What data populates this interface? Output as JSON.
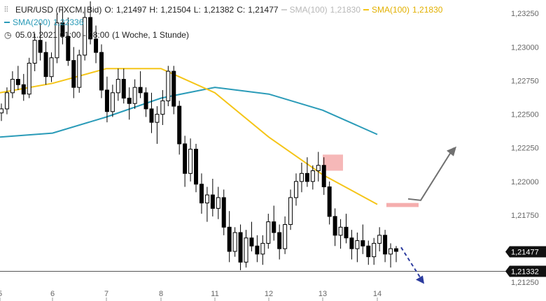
{
  "legend": {
    "symbol": "EUR/USD (FXCM, Bid)",
    "o_label": "O:",
    "o_value": "1,21497",
    "h_label": "H:",
    "h_value": "1,21504",
    "l_label": "L:",
    "l_value": "1,21382",
    "c_label": "C:",
    "c_value": "1,21477",
    "sma100_label": "SMA(100)",
    "sma100_value": "1,21830",
    "sma100_active_label": "SMA(100)",
    "sma100_active_value": "1,21830",
    "sma200_label": "SMA(200)",
    "sma200_value": "1,22336",
    "period": "05.01.2021 01:00 - 08:00",
    "timeframe": "(1 Woche, 1 Stunde)"
  },
  "colors": {
    "candle": "#000000",
    "sma100": "#f5c518",
    "sma200": "#2a9bb8",
    "sma100_dim": "#c4c4c4",
    "highlight": "#f29a9a",
    "arrow_up": "#707070",
    "arrow_down": "#2b3b9e",
    "level_line": "#555555",
    "axis_text": "#666666"
  },
  "chart_data": {
    "type": "candlestick",
    "instrument": "EUR/USD",
    "ylim": [
      1.2122,
      1.2335
    ],
    "y_ticks": [
      "1,23250",
      "1,23000",
      "1,22750",
      "1,22500",
      "1,22250",
      "1,22000",
      "1,21750",
      "1,21250"
    ],
    "y_tick_values": [
      1.2325,
      1.23,
      1.2275,
      1.225,
      1.2225,
      1.22,
      1.2175,
      1.2125
    ],
    "x_ticks": [
      "5",
      "6",
      "7",
      "8",
      "11",
      "12",
      "13",
      "14"
    ],
    "price_label_current": "1,21477",
    "price_label_level": "1,21332",
    "current_price": 1.21477,
    "level_price": 1.21332,
    "sma100_last": 1.2183,
    "sma200_last": 1.22336,
    "sma200_path": [
      {
        "x": "5",
        "y": 1.2233
      },
      {
        "x": "6",
        "y": 1.2236
      },
      {
        "x": "7",
        "y": 1.2248
      },
      {
        "x": "8",
        "y": 1.2262
      },
      {
        "x": "11",
        "y": 1.227
      },
      {
        "x": "12",
        "y": 1.2265
      },
      {
        "x": "13",
        "y": 1.2253
      },
      {
        "x": "14",
        "y": 1.2235
      }
    ],
    "sma100_path": [
      {
        "x": "5",
        "y": 1.2266
      },
      {
        "x": "6",
        "y": 1.2273
      },
      {
        "x": "7",
        "y": 1.2284
      },
      {
        "x": "8",
        "y": 1.2284
      },
      {
        "x": "11",
        "y": 1.2266
      },
      {
        "x": "12",
        "y": 1.2233
      },
      {
        "x": "13",
        "y": 1.2205
      },
      {
        "x": "14",
        "y": 1.2183
      }
    ],
    "candles": [
      {
        "o": 1.2251,
        "h": 1.2258,
        "l": 1.2245,
        "c": 1.2254
      },
      {
        "o": 1.2254,
        "h": 1.227,
        "l": 1.225,
        "c": 1.2266
      },
      {
        "o": 1.2266,
        "h": 1.2282,
        "l": 1.2262,
        "c": 1.2276
      },
      {
        "o": 1.2276,
        "h": 1.2286,
        "l": 1.2268,
        "c": 1.2272
      },
      {
        "o": 1.2272,
        "h": 1.228,
        "l": 1.226,
        "c": 1.2265
      },
      {
        "o": 1.2265,
        "h": 1.2292,
        "l": 1.2262,
        "c": 1.2288
      },
      {
        "o": 1.2288,
        "h": 1.231,
        "l": 1.2282,
        "c": 1.2305
      },
      {
        "o": 1.2305,
        "h": 1.2318,
        "l": 1.229,
        "c": 1.2296
      },
      {
        "o": 1.2296,
        "h": 1.2304,
        "l": 1.2272,
        "c": 1.2278
      },
      {
        "o": 1.2278,
        "h": 1.2296,
        "l": 1.2274,
        "c": 1.2292
      },
      {
        "o": 1.2292,
        "h": 1.2325,
        "l": 1.2288,
        "c": 1.2318
      },
      {
        "o": 1.2318,
        "h": 1.233,
        "l": 1.2302,
        "c": 1.2308
      },
      {
        "o": 1.2308,
        "h": 1.2322,
        "l": 1.2286,
        "c": 1.229
      },
      {
        "o": 1.229,
        "h": 1.23,
        "l": 1.2262,
        "c": 1.227
      },
      {
        "o": 1.227,
        "h": 1.2298,
        "l": 1.2266,
        "c": 1.2294
      },
      {
        "o": 1.2294,
        "h": 1.233,
        "l": 1.229,
        "c": 1.2322
      },
      {
        "o": 1.2322,
        "h": 1.2334,
        "l": 1.2302,
        "c": 1.2306
      },
      {
        "o": 1.2306,
        "h": 1.2316,
        "l": 1.2288,
        "c": 1.2296
      },
      {
        "o": 1.2296,
        "h": 1.2302,
        "l": 1.2262,
        "c": 1.2268
      },
      {
        "o": 1.2268,
        "h": 1.2278,
        "l": 1.2244,
        "c": 1.2252
      },
      {
        "o": 1.2252,
        "h": 1.2272,
        "l": 1.2248,
        "c": 1.2266
      },
      {
        "o": 1.2266,
        "h": 1.2284,
        "l": 1.226,
        "c": 1.2276
      },
      {
        "o": 1.2276,
        "h": 1.2284,
        "l": 1.2258,
        "c": 1.2262
      },
      {
        "o": 1.2262,
        "h": 1.227,
        "l": 1.2246,
        "c": 1.2258
      },
      {
        "o": 1.2258,
        "h": 1.2276,
        "l": 1.2254,
        "c": 1.227
      },
      {
        "o": 1.227,
        "h": 1.2282,
        "l": 1.2262,
        "c": 1.2266
      },
      {
        "o": 1.2266,
        "h": 1.227,
        "l": 1.2248,
        "c": 1.2254
      },
      {
        "o": 1.2254,
        "h": 1.2266,
        "l": 1.2236,
        "c": 1.2244
      },
      {
        "o": 1.2244,
        "h": 1.2256,
        "l": 1.2228,
        "c": 1.225
      },
      {
        "o": 1.225,
        "h": 1.2268,
        "l": 1.2242,
        "c": 1.226
      },
      {
        "o": 1.226,
        "h": 1.2286,
        "l": 1.2256,
        "c": 1.2282
      },
      {
        "o": 1.2282,
        "h": 1.2286,
        "l": 1.225,
        "c": 1.2256
      },
      {
        "o": 1.2256,
        "h": 1.226,
        "l": 1.222,
        "c": 1.2228
      },
      {
        "o": 1.2228,
        "h": 1.2234,
        "l": 1.2196,
        "c": 1.2206
      },
      {
        "o": 1.2206,
        "h": 1.2232,
        "l": 1.22,
        "c": 1.2224
      },
      {
        "o": 1.2224,
        "h": 1.2228,
        "l": 1.2192,
        "c": 1.2198
      },
      {
        "o": 1.2198,
        "h": 1.2206,
        "l": 1.2176,
        "c": 1.2184
      },
      {
        "o": 1.2184,
        "h": 1.2196,
        "l": 1.217,
        "c": 1.219
      },
      {
        "o": 1.219,
        "h": 1.2202,
        "l": 1.2174,
        "c": 1.218
      },
      {
        "o": 1.218,
        "h": 1.2196,
        "l": 1.2172,
        "c": 1.2188
      },
      {
        "o": 1.2188,
        "h": 1.2194,
        "l": 1.216,
        "c": 1.2166
      },
      {
        "o": 1.2166,
        "h": 1.2178,
        "l": 1.214,
        "c": 1.2148
      },
      {
        "o": 1.2148,
        "h": 1.2166,
        "l": 1.2144,
        "c": 1.2162
      },
      {
        "o": 1.2162,
        "h": 1.2168,
        "l": 1.2134,
        "c": 1.214
      },
      {
        "o": 1.214,
        "h": 1.2164,
        "l": 1.2136,
        "c": 1.2158
      },
      {
        "o": 1.2158,
        "h": 1.217,
        "l": 1.2148,
        "c": 1.2152
      },
      {
        "o": 1.2152,
        "h": 1.216,
        "l": 1.214,
        "c": 1.2146
      },
      {
        "o": 1.2146,
        "h": 1.216,
        "l": 1.2138,
        "c": 1.2154
      },
      {
        "o": 1.2154,
        "h": 1.2176,
        "l": 1.215,
        "c": 1.217
      },
      {
        "o": 1.217,
        "h": 1.2182,
        "l": 1.2156,
        "c": 1.2162
      },
      {
        "o": 1.2162,
        "h": 1.2168,
        "l": 1.2142,
        "c": 1.215
      },
      {
        "o": 1.215,
        "h": 1.2174,
        "l": 1.2146,
        "c": 1.2168
      },
      {
        "o": 1.2168,
        "h": 1.2194,
        "l": 1.2164,
        "c": 1.2188
      },
      {
        "o": 1.2188,
        "h": 1.2206,
        "l": 1.2182,
        "c": 1.22
      },
      {
        "o": 1.22,
        "h": 1.2214,
        "l": 1.2192,
        "c": 1.2206
      },
      {
        "o": 1.2206,
        "h": 1.2218,
        "l": 1.2196,
        "c": 1.22
      },
      {
        "o": 1.22,
        "h": 1.2212,
        "l": 1.2194,
        "c": 1.2208
      },
      {
        "o": 1.2208,
        "h": 1.2222,
        "l": 1.22,
        "c": 1.2212
      },
      {
        "o": 1.2212,
        "h": 1.2218,
        "l": 1.219,
        "c": 1.2196
      },
      {
        "o": 1.2196,
        "h": 1.22,
        "l": 1.2168,
        "c": 1.2174
      },
      {
        "o": 1.2174,
        "h": 1.218,
        "l": 1.2152,
        "c": 1.216
      },
      {
        "o": 1.216,
        "h": 1.2172,
        "l": 1.215,
        "c": 1.2166
      },
      {
        "o": 1.2166,
        "h": 1.2176,
        "l": 1.2154,
        "c": 1.2158
      },
      {
        "o": 1.2158,
        "h": 1.2164,
        "l": 1.2142,
        "c": 1.215
      },
      {
        "o": 1.215,
        "h": 1.2162,
        "l": 1.214,
        "c": 1.2156
      },
      {
        "o": 1.2156,
        "h": 1.2168,
        "l": 1.2146,
        "c": 1.2152
      },
      {
        "o": 1.2152,
        "h": 1.2156,
        "l": 1.2138,
        "c": 1.2144
      },
      {
        "o": 1.2144,
        "h": 1.2158,
        "l": 1.2138,
        "c": 1.2154
      },
      {
        "o": 1.2154,
        "h": 1.2166,
        "l": 1.2148,
        "c": 1.216
      },
      {
        "o": 1.216,
        "h": 1.2164,
        "l": 1.214,
        "c": 1.2146
      },
      {
        "o": 1.2146,
        "h": 1.2154,
        "l": 1.2136,
        "c": 1.215
      },
      {
        "o": 1.215,
        "h": 1.2152,
        "l": 1.214,
        "c": 1.2148
      }
    ]
  },
  "annotations": {
    "highlight_zone_price": [
      1.2208,
      1.222
    ],
    "sma_touch_zone_price": [
      1.2181,
      1.2184
    ],
    "up_arrow_price": [
      1.2186,
      1.2225
    ],
    "down_arrow_price": [
      1.2151,
      1.2128
    ]
  }
}
